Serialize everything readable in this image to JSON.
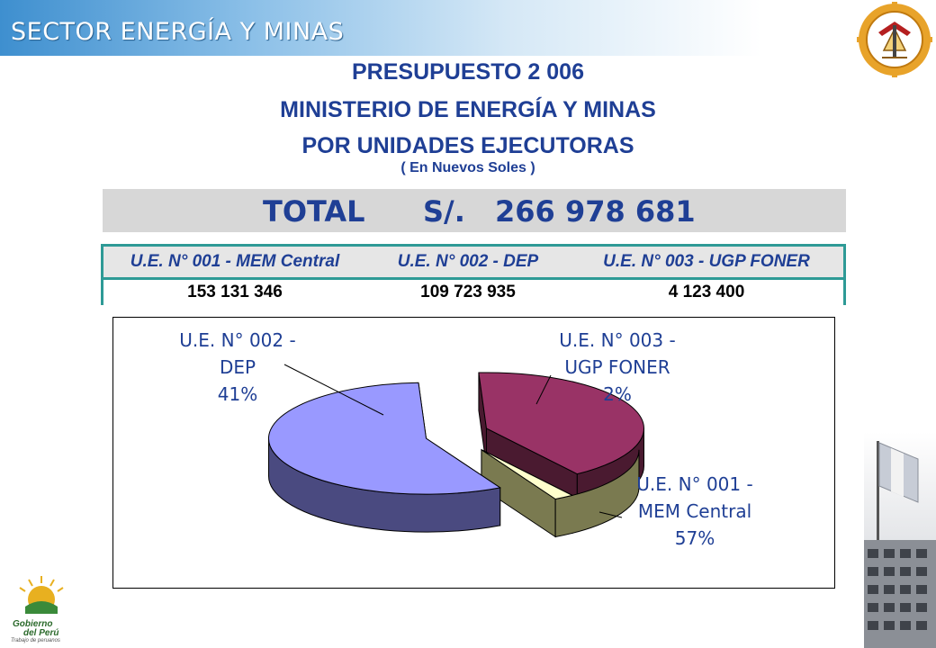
{
  "header": {
    "banner_text": "SECTOR ENERGÍA Y MINAS"
  },
  "titles": {
    "line1": "PRESUPUESTO 2 006",
    "line2": "MINISTERIO DE ENERGÍA Y MINAS",
    "line3": "POR UNIDADES EJECUTORAS",
    "units": "( En Nuevos Soles )"
  },
  "total": {
    "label": "TOTAL",
    "currency": "S/.",
    "value": "266 978 681"
  },
  "table": {
    "headers": [
      "U.E. N° 001 - MEM Central",
      "U.E. N° 002 - DEP",
      "U.E. N° 003 - UGP FONER"
    ],
    "values": [
      "153 131 346",
      "109 723 935",
      "4 123 400"
    ]
  },
  "chart_data": {
    "type": "pie",
    "title": "",
    "three_d": true,
    "exploded": true,
    "slices": [
      {
        "label_line1": "U.E. N° 001 -",
        "label_line2": "MEM Central",
        "percent_label": "57%",
        "value": 57,
        "color": "#9999ff",
        "side_color": "#4a4a80"
      },
      {
        "label_line1": "U.E. N° 002 -",
        "label_line2": "DEP",
        "percent_label": "41%",
        "value": 41,
        "color": "#993366",
        "side_color": "#4a1a30"
      },
      {
        "label_line1": "U.E. N° 003 -",
        "label_line2": "UGP FONER",
        "percent_label": "2%",
        "value": 2,
        "color": "#ffffcc",
        "side_color": "#7a7a50"
      }
    ]
  },
  "footer": {
    "logo_line1": "Gobierno",
    "logo_line2": "del Perú",
    "logo_tagline": "Trabajo de peruanos"
  }
}
